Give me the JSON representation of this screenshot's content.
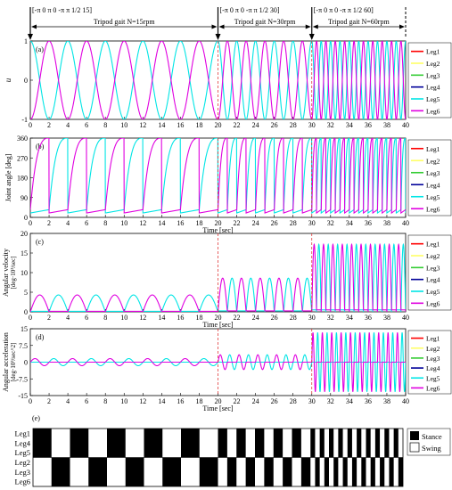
{
  "colors": {
    "Leg1": "#ff0000",
    "Leg2": "#ffff66",
    "Leg3": "#33cc33",
    "Leg4": "#000099",
    "Leg5": "#00e5e5",
    "Leg6": "#e000e0"
  },
  "header": {
    "segments": [
      {
        "param": "[-π 0 π 0 -π π 1/2 15]",
        "gait": "Tripod gait N=15rpm",
        "t_start": 0,
        "t_end": 20
      },
      {
        "param": "[-π 0 π 0 -π π 1/2 30]",
        "gait": "Tripod gait N=30rpm",
        "t_start": 20,
        "t_end": 30
      },
      {
        "param": "[-π 0 π 0 -π π 1/2 60]",
        "gait": "Tripod gait N=60rpm",
        "t_start": 30,
        "t_end": 40
      }
    ]
  },
  "chart_data": [
    {
      "type": "line",
      "panel": "(a)",
      "xlabel": "",
      "ylabel": "u",
      "xlim": [
        0,
        40
      ],
      "ylim": [
        -1,
        1
      ],
      "yticks": [
        "1",
        "0",
        "-1"
      ],
      "legend": [
        "Leg1",
        "Leg2",
        "Leg3",
        "Leg4",
        "Leg5",
        "Leg6"
      ],
      "description_of_series": {
        "x": [
          0,
          20,
          30,
          40
        ],
        "freq_hz": [
          0.25,
          0.5,
          1.0
        ]
      }
    },
    {
      "type": "line",
      "panel": "(b)",
      "xlabel": "Time [sec]",
      "ylabel": "Joint angle [deg]",
      "xlim": [
        0,
        40
      ],
      "ylim": [
        0,
        360
      ],
      "yticks": [
        "360",
        "270",
        "180",
        "90",
        "0"
      ],
      "legend": [
        "Leg1",
        "Leg2",
        "Leg3",
        "Leg4",
        "Leg5",
        "Leg6"
      ]
    },
    {
      "type": "line",
      "panel": "(c)",
      "xlabel": "Time [sec]",
      "ylabel": "Angular velocity",
      "ylabel2": "[deg·10³/sec]",
      "xlim": [
        0,
        40
      ],
      "ylim": [
        0,
        20
      ],
      "yticks": [
        "20",
        "15",
        "10",
        "5",
        "0"
      ],
      "peak_values": [
        4.3,
        8.6,
        17.2
      ],
      "legend": [
        "Leg1",
        "Leg2",
        "Leg3",
        "Leg4",
        "Leg5",
        "Leg6"
      ]
    },
    {
      "type": "line",
      "panel": "(d)",
      "xlabel": "Time [sec]",
      "ylabel": "Angular acceleration",
      "ylabel2": "[deg·10³/sec^2]",
      "xlim": [
        0,
        40
      ],
      "ylim": [
        -15,
        15
      ],
      "yticks": [
        "15",
        "7.5",
        "0",
        "-7.5",
        "-15"
      ],
      "peak_values": [
        1.6,
        3.3,
        13.2
      ],
      "legend": [
        "Leg1",
        "Leg2",
        "Leg3",
        "Leg4",
        "Leg5",
        "Leg6"
      ]
    }
  ],
  "xticks": [
    "0",
    "2",
    "4",
    "6",
    "8",
    "10",
    "12",
    "14",
    "16",
    "18",
    "20",
    "22",
    "24",
    "26",
    "28",
    "30",
    "32",
    "34",
    "36",
    "38",
    "40"
  ],
  "gait_panel": {
    "label": "(e)",
    "rows": [
      "Leg1",
      "Leg4",
      "Leg5",
      "Leg2",
      "Leg3",
      "Leg6"
    ],
    "legend": {
      "stance": "Stance",
      "swing": "Swing"
    }
  }
}
